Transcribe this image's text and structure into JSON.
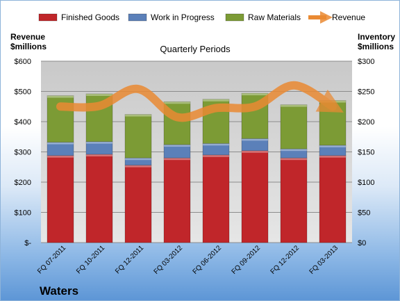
{
  "chart_data": {
    "type": "bar",
    "subtitle": "Quarterly Periods",
    "company": "Waters",
    "left_axis_label": [
      "Revenue",
      "$millions"
    ],
    "right_axis_label": [
      "Inventory",
      "$millions"
    ],
    "categories": [
      "FQ 07-2011",
      "FQ 10-2011",
      "FQ 12-2011",
      "FQ 03-2012",
      "FQ 06-2012",
      "FQ 09-2012",
      "FQ 12-2012",
      "FQ 03-2013"
    ],
    "series": [
      {
        "name": "Finished Goods",
        "axis": "right",
        "color": "#c0262a",
        "values": [
          144,
          146,
          128,
          140,
          145,
          152,
          140,
          144
        ]
      },
      {
        "name": "Work in Progress",
        "axis": "right",
        "color": "#5b80b9",
        "values": [
          22,
          21,
          12,
          22,
          19,
          20,
          15,
          17
        ]
      },
      {
        "name": "Raw Materials",
        "axis": "right",
        "color": "#7c9b35",
        "values": [
          77,
          79,
          72,
          71,
          73,
          75,
          73,
          74
        ]
      },
      {
        "name": "Revenue",
        "axis": "left",
        "type": "line",
        "color": "#ea8a33",
        "values": [
          450,
          452,
          508,
          415,
          445,
          450,
          520,
          450
        ]
      }
    ],
    "left_axis": {
      "min": 0,
      "max": 600,
      "ticks": [
        "$-",
        "$100",
        "$200",
        "$300",
        "$400",
        "$500",
        "$600"
      ]
    },
    "right_axis": {
      "min": 0,
      "max": 300,
      "ticks": [
        "$0",
        "$50",
        "$100",
        "$150",
        "$200",
        "$250",
        "$300"
      ]
    },
    "legend_position": "top",
    "grid": true
  }
}
